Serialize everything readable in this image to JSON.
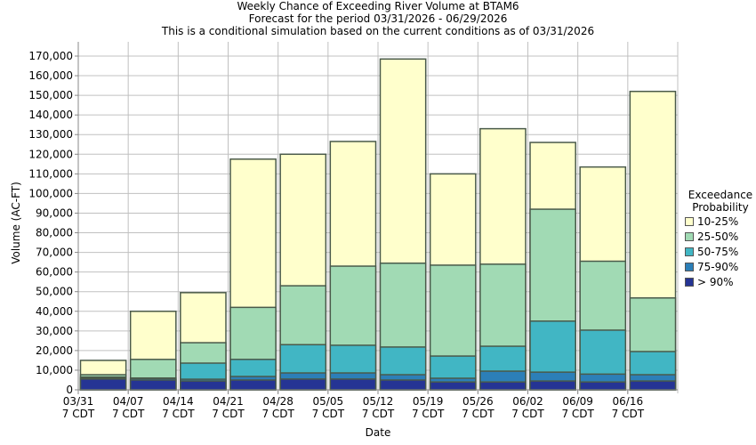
{
  "chart_data": {
    "type": "bar",
    "stacked": true,
    "title": "Weekly Chance of Exceeding River Volume at BTAM6",
    "subtitle": [
      "Forecast for the period 03/31/2026 - 06/29/2026",
      "This is a conditional simulation based on the current conditions as of 03/31/2026"
    ],
    "xlabel": "Date",
    "ylabel": "Volume (AC-FT)",
    "ylim": [
      0,
      170000
    ],
    "yticks": [
      0,
      10000,
      20000,
      30000,
      40000,
      50000,
      60000,
      70000,
      80000,
      90000,
      100000,
      110000,
      120000,
      130000,
      140000,
      150000,
      160000,
      170000
    ],
    "ytick_labels": [
      "0",
      "10,000",
      "20,000",
      "30,000",
      "40,000",
      "50,000",
      "60,000",
      "70,000",
      "80,000",
      "90,000",
      "100,000",
      "110,000",
      "120,000",
      "130,000",
      "140,000",
      "150,000",
      "160,000",
      "170,000"
    ],
    "categories": [
      "03/31",
      "04/07",
      "04/14",
      "04/21",
      "04/28",
      "05/05",
      "05/12",
      "05/19",
      "05/26",
      "06/02",
      "06/09",
      "06/16"
    ],
    "category_sub": "7 CDT",
    "grid": true,
    "legend": {
      "title": [
        "Exceedance",
        "Probability"
      ],
      "placement": "right"
    },
    "series": [
      {
        "name": "> 90%",
        "color": "#253494",
        "tops": [
          5500,
          5000,
          4500,
          5000,
          5500,
          5500,
          5000,
          4000,
          4000,
          4500,
          4000,
          4500
        ]
      },
      {
        "name": "75-90%",
        "color": "#2c7fb8",
        "tops": [
          6000,
          5800,
          5400,
          6800,
          8600,
          8600,
          7700,
          5900,
          9500,
          9000,
          8000,
          7700
        ]
      },
      {
        "name": "50-75%",
        "color": "#41b6c4",
        "tops": [
          6500,
          6000,
          13600,
          15500,
          23000,
          22700,
          21800,
          17200,
          22200,
          35000,
          30400,
          19500
        ]
      },
      {
        "name": "25-50%",
        "color": "#a1dab4",
        "tops": [
          7700,
          15500,
          24000,
          42000,
          53000,
          63000,
          64500,
          63500,
          64000,
          92000,
          65500,
          46800
        ]
      },
      {
        "name": "10-25%",
        "color": "#ffffcc",
        "tops": [
          15000,
          40000,
          49500,
          117500,
          120000,
          126500,
          168500,
          110000,
          133000,
          126000,
          113500,
          152000
        ]
      }
    ]
  }
}
